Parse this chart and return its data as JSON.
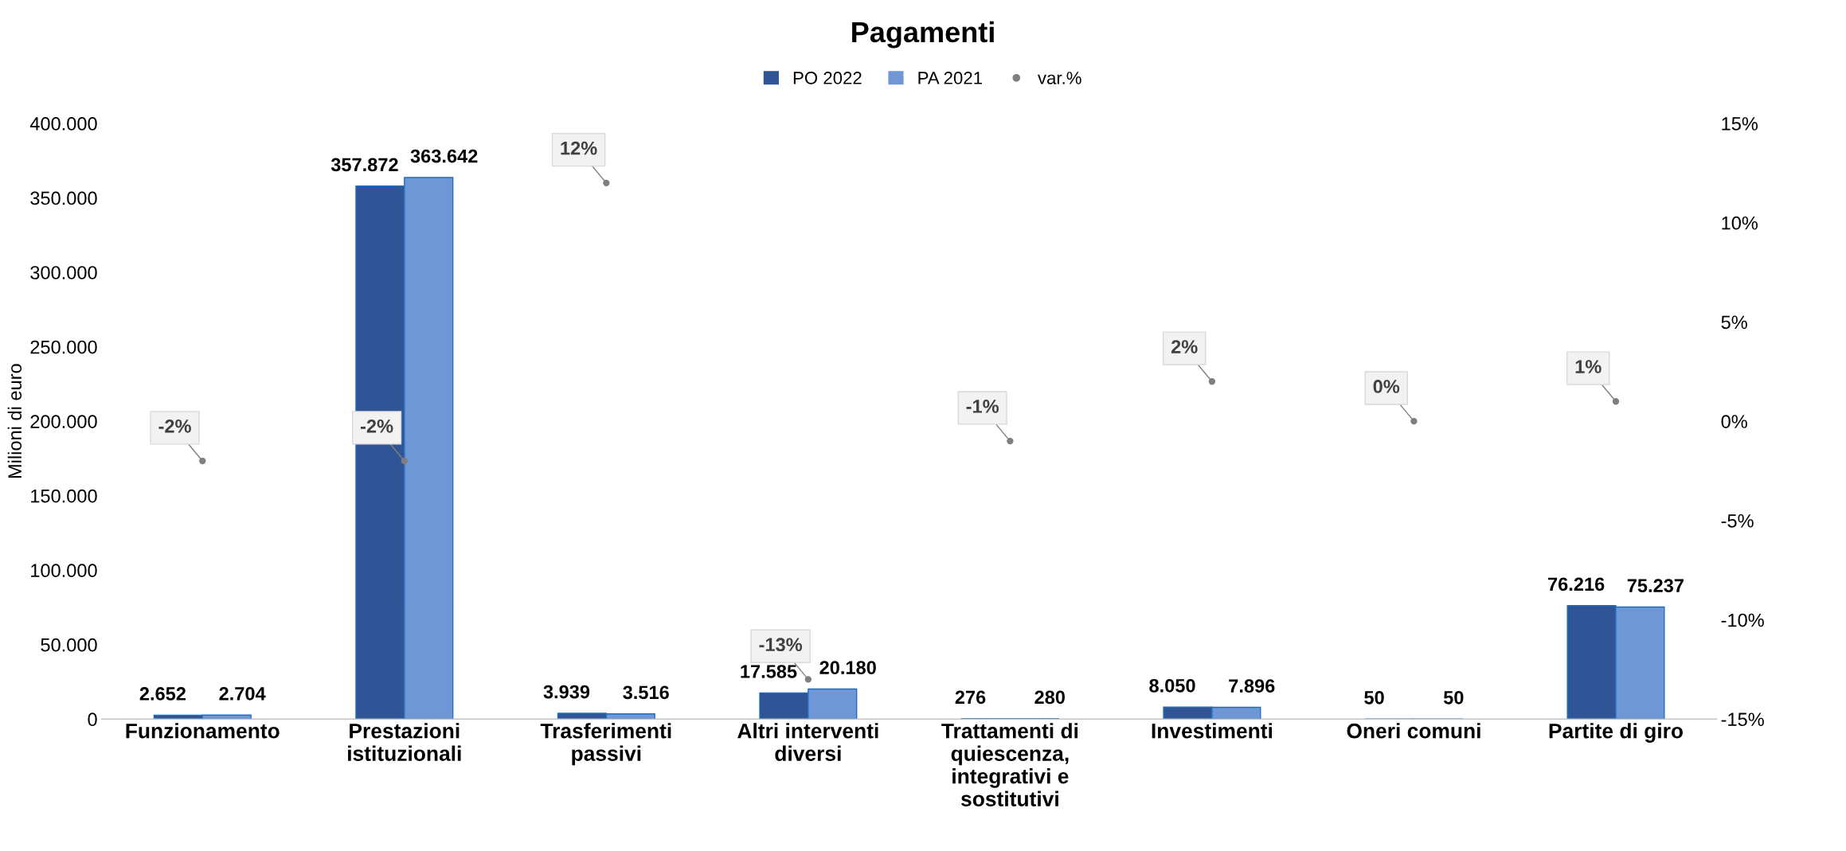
{
  "chart_data": {
    "type": "bar",
    "title": "Pagamenti",
    "ylabel": "Milioni di euro",
    "categories": [
      "Funzionamento",
      "Prestazioni\nistituzionali",
      "Trasferimenti\npassivi",
      "Altri interventi\ndiversi",
      "Trattamenti di\nquiescenza,\nintegrativi e\nsostitutivi",
      "Investimenti",
      "Oneri comuni",
      "Partite di giro"
    ],
    "series": [
      {
        "name": "PO 2022",
        "color": "#2f5597",
        "values": [
          2652,
          357872,
          3939,
          17585,
          276,
          8050,
          50,
          76216
        ],
        "value_labels": [
          "2.652",
          "357.872",
          "3.939",
          "17.585",
          "276",
          "8.050",
          "50",
          "76.216"
        ]
      },
      {
        "name": "PA 2021",
        "color": "#6f97d6",
        "values": [
          2704,
          363642,
          3516,
          20180,
          280,
          7896,
          50,
          75237
        ],
        "value_labels": [
          "2.704",
          "363.642",
          "3.516",
          "20.180",
          "280",
          "7.896",
          "50",
          "75.237"
        ]
      },
      {
        "name": "var.%",
        "type": "scatter",
        "axis": "y2",
        "marker": "circle",
        "color": "#7f7f7f",
        "values": [
          -2,
          -2,
          12,
          -13,
          -1,
          2,
          0,
          1
        ],
        "value_labels": [
          "-2%",
          "-2%",
          "12%",
          "-13%",
          "-1%",
          "2%",
          "0%",
          "1%"
        ]
      }
    ],
    "ylim": [
      0,
      400000
    ],
    "yticks": [
      0,
      {
        "value": 50000,
        "label": "50.000"
      },
      {
        "value": 100000,
        "label": "100.000"
      },
      {
        "value": 150000,
        "label": "150.000"
      },
      {
        "value": 200000,
        "label": "200.000"
      },
      {
        "value": 250000,
        "label": "250.000"
      },
      {
        "value": 300000,
        "label": "300.000"
      },
      {
        "value": 350000,
        "label": "350.000"
      },
      {
        "value": 400000,
        "label": "400.000"
      }
    ],
    "y2lim": [
      -15,
      15
    ],
    "y2ticks": [
      {
        "value": -15,
        "label": "-15%"
      },
      {
        "value": -10,
        "label": "-10%"
      },
      {
        "value": -5,
        "label": "-5%"
      },
      {
        "value": 0,
        "label": "0%"
      },
      {
        "value": 5,
        "label": "5%"
      },
      {
        "value": 10,
        "label": "10%"
      },
      {
        "value": 15,
        "label": "15%"
      }
    ],
    "legend": "top"
  }
}
